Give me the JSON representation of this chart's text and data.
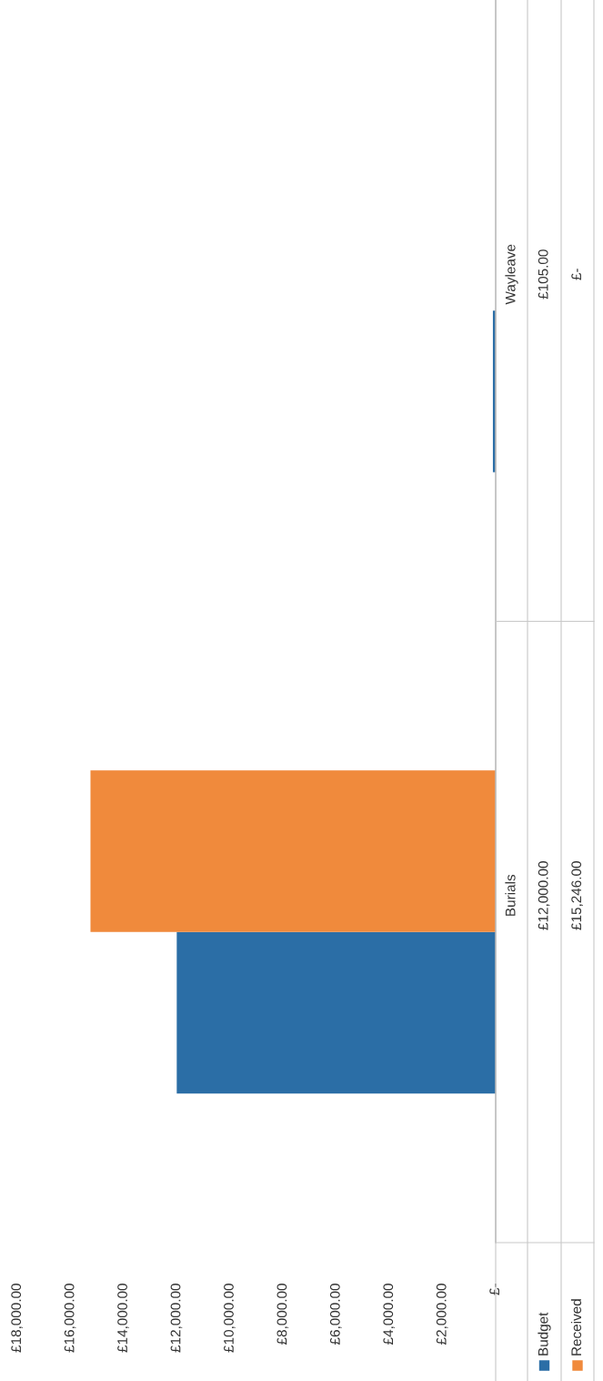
{
  "chart_data": {
    "type": "bar",
    "orientation": "horizontal",
    "categories": [
      "Wayleave",
      "Burials"
    ],
    "series": [
      {
        "name": "Budget",
        "color": "#2b6ea6",
        "values": [
          105,
          12000
        ],
        "value_labels": [
          "£105.00",
          "£12,000.00"
        ]
      },
      {
        "name": "Received",
        "color": "#f08a3c",
        "values": [
          0,
          15246
        ],
        "value_labels": [
          "£-",
          "£15,246.00"
        ]
      }
    ],
    "xlim": [
      18000,
      0
    ],
    "xticks": [
      {
        "value": 0,
        "label": "£-"
      },
      {
        "value": 2000,
        "label": "£2,000.00"
      },
      {
        "value": 4000,
        "label": "£4,000.00"
      },
      {
        "value": 6000,
        "label": "£6,000.00"
      },
      {
        "value": 8000,
        "label": "£8,000.00"
      },
      {
        "value": 10000,
        "label": "£10,000.00"
      },
      {
        "value": 12000,
        "label": "£12,000.00"
      },
      {
        "value": 14000,
        "label": "£14,000.00"
      },
      {
        "value": 16000,
        "label": "£16,000.00"
      },
      {
        "value": 18000,
        "label": "£18,000.00"
      }
    ],
    "grid": false,
    "legend": "bottom right"
  }
}
